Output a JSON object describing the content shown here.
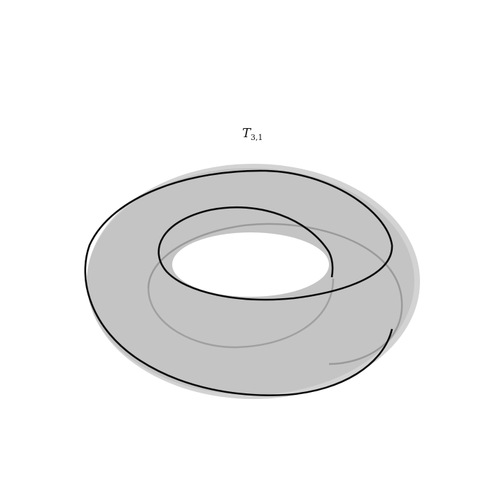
{
  "figure": {
    "title_main": "T",
    "title_subscript": "3,1"
  },
  "colors": {
    "background": "#ffffff",
    "torus_fill": "#c4c4c4",
    "shadow": "#d2d2d2",
    "hole": "#ffffff",
    "knot_front": "#0a0a0a",
    "knot_back": "#9a9a9a"
  }
}
